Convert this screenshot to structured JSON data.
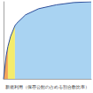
{
  "chart_data": {
    "type": "line",
    "x_label": "新規利用（保存公館の占める割合数比率）",
    "x": [
      0,
      3,
      5,
      8,
      13,
      15,
      25,
      40,
      60,
      80,
      100
    ],
    "series": [
      {
        "color": "#f5a55a",
        "values": [
          0,
          30,
          42,
          null,
          null,
          null,
          null,
          null,
          null,
          null,
          null
        ]
      },
      {
        "color": "#f4ec6a",
        "values": [
          null,
          null,
          42,
          55,
          69,
          null,
          null,
          null,
          null,
          null,
          null
        ]
      },
      {
        "color": "#a9d3f2",
        "values": [
          null,
          null,
          null,
          null,
          69,
          72,
          83,
          91,
          96,
          99,
          100
        ]
      }
    ],
    "xlim": [
      0,
      100
    ],
    "ylim": [
      0,
      100
    ],
    "xticks": [
      0,
      100
    ],
    "yticks": [
      0,
      100
    ],
    "grid": false,
    "tick_labels": false
  }
}
